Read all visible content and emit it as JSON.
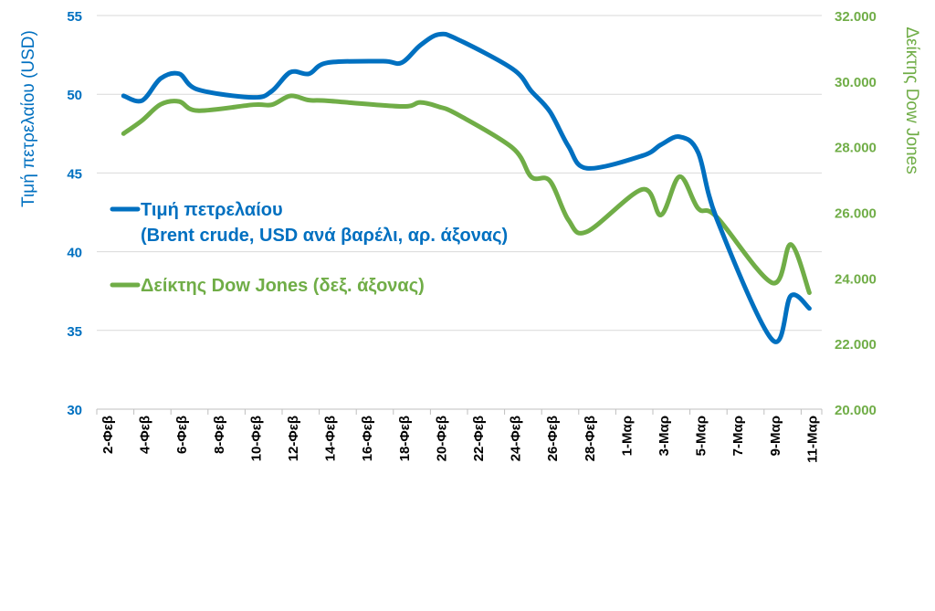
{
  "chart_data": {
    "type": "line",
    "title": "",
    "colors": {
      "brent": "#0070C0",
      "dow": "#70AD47",
      "grid": "#D9D9D9"
    },
    "grid": true,
    "legend_position": "left-middle inside plot",
    "x_axis": {
      "ticks": [
        "2-Φεβ",
        "4-Φεβ",
        "6-Φεβ",
        "8-Φεβ",
        "10-Φεβ",
        "12-Φεβ",
        "14-Φεβ",
        "16-Φεβ",
        "18-Φεβ",
        "20-Φεβ",
        "22-Φεβ",
        "24-Φεβ",
        "26-Φεβ",
        "28-Φεβ",
        "1-Μαρ",
        "3-Μαρ",
        "5-Μαρ",
        "7-Μαρ",
        "9-Μαρ",
        "11-Μαρ"
      ]
    },
    "y_left": {
      "label": "Τιμή πετρελαίου (USD)",
      "range": [
        30,
        55
      ],
      "ticks": [
        "30",
        "35",
        "40",
        "45",
        "50",
        "55"
      ]
    },
    "y_right": {
      "label": "Δείκτης Dow Jones",
      "range": [
        20000,
        32000
      ],
      "ticks": [
        "20.000",
        "22.000",
        "24.000",
        "26.000",
        "28.000",
        "30.000",
        "32.000"
      ]
    },
    "series": [
      {
        "name_line1": "Τιμή πετρελαίου",
        "name_line2": "(Brent crude, USD ανά βαρέλι, αρ. άξονας)",
        "axis": "left",
        "x": [
          "3-Φεβ",
          "4-Φεβ",
          "5-Φεβ",
          "6-Φεβ",
          "7-Φεβ",
          "10-Φεβ",
          "11-Φεβ",
          "12-Φεβ",
          "13-Φεβ",
          "14-Φεβ",
          "17-Φεβ",
          "18-Φεβ",
          "19-Φεβ",
          "20-Φεβ",
          "21-Φεβ",
          "24-Φεβ",
          "25-Φεβ",
          "26-Φεβ",
          "27-Φεβ",
          "28-Φεβ",
          "2-Μαρ",
          "3-Μαρ",
          "4-Μαρ",
          "5-Μαρ",
          "6-Μαρ",
          "9-Μαρ",
          "10-Μαρ",
          "11-Μαρ"
        ],
        "values": [
          49.9,
          49.6,
          51.0,
          51.3,
          50.3,
          49.8,
          50.2,
          51.4,
          51.3,
          52.0,
          52.1,
          52.0,
          53.1,
          53.8,
          53.5,
          51.6,
          50.2,
          48.9,
          46.7,
          45.3,
          46.1,
          46.8,
          47.3,
          46.3,
          42.1,
          34.4,
          37.2,
          36.4
        ]
      },
      {
        "name": "Δείκτης Dow Jones (δεξ. άξονας)",
        "axis": "right",
        "x": [
          "3-Φεβ",
          "4-Φεβ",
          "5-Φεβ",
          "6-Φεβ",
          "7-Φεβ",
          "10-Φεβ",
          "11-Φεβ",
          "12-Φεβ",
          "13-Φεβ",
          "14-Φεβ",
          "18-Φεβ",
          "19-Φεβ",
          "20-Φεβ",
          "21-Φεβ",
          "24-Φεβ",
          "25-Φεβ",
          "26-Φεβ",
          "27-Φεβ",
          "28-Φεβ",
          "2-Μαρ",
          "3-Μαρ",
          "4-Μαρ",
          "5-Μαρ",
          "6-Μαρ",
          "9-Μαρ",
          "10-Μαρ",
          "11-Μαρ"
        ],
        "values": [
          28400,
          28800,
          29290,
          29380,
          29100,
          29280,
          29280,
          29550,
          29420,
          29400,
          29230,
          29350,
          29220,
          28990,
          27960,
          27080,
          26960,
          25770,
          25410,
          26700,
          25920,
          27090,
          26120,
          25860,
          23850,
          25020,
          23550
        ]
      }
    ]
  }
}
